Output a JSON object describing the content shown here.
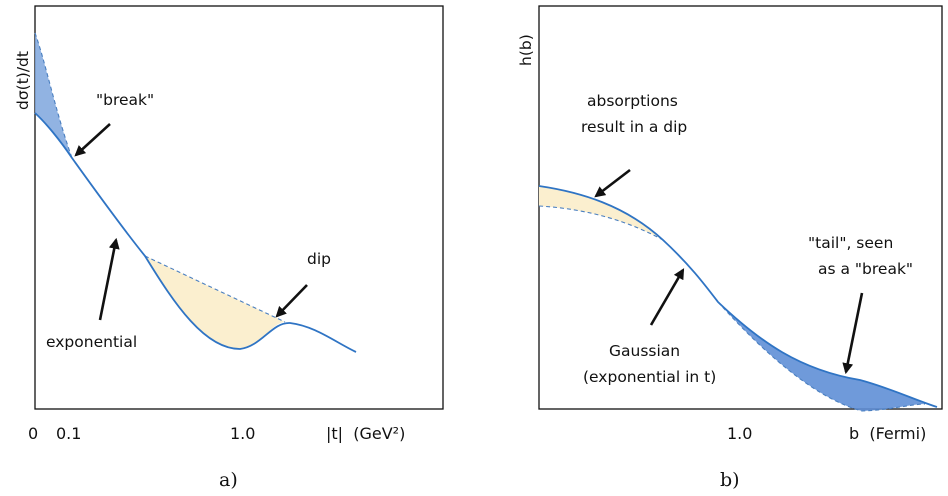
{
  "panel_a": {
    "ylabel": "dσ(t)/dt",
    "break_label": "\"break\"",
    "dip_label": "dip",
    "exponential_label": "exponential",
    "tick_0": "0",
    "tick_01": "0.1",
    "tick_10": "1.0",
    "xlabel": "|t|  (GeV²)",
    "caption": "a)"
  },
  "panel_b": {
    "ylabel": "h(b)",
    "absorption_line1": "absorptions",
    "absorption_line2": "result in a dip",
    "tail_line1": "\"tail\", seen",
    "tail_line2": "as a \"break\"",
    "gaussian_line1": "Gaussian",
    "gaussian_line2": "(exponential in t)",
    "tick_10": "1.0",
    "xlabel": "b  (Fermi)",
    "caption": "b)"
  },
  "colors": {
    "curve": "#2f74c4",
    "blue_fill": "#7ea6dd",
    "yellow_fill": "#fbefcf"
  }
}
